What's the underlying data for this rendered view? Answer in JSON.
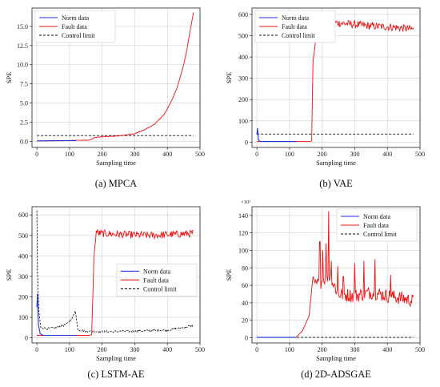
{
  "chart_data": [
    {
      "type": "line",
      "caption": "(a) MPCA",
      "xlabel": "Sampling time",
      "ylabel": "SPE",
      "xlim": [
        -15,
        500
      ],
      "ylim": [
        -0.8,
        17.4
      ],
      "xticks": [
        0,
        100,
        200,
        300,
        400,
        500
      ],
      "yticks": [
        0.0,
        2.5,
        5.0,
        7.5,
        10.0,
        12.5,
        15.0
      ],
      "ytick_labels": [
        "0.0",
        "2.5",
        "5.0",
        "7.5",
        "10.0",
        "12.5",
        "15.0"
      ],
      "y_multiplier": "",
      "grid": true,
      "legend_position": "top-left",
      "legend": [
        "Norm data",
        "Fault data",
        "Control limit"
      ],
      "colors": {
        "norm": "#2233dd",
        "fault": "#ee1111",
        "limit": "#111111"
      },
      "control_limit": 0.75,
      "noise": 0.05,
      "series": [
        {
          "name": "Norm data",
          "x": [
            0,
            120
          ],
          "y": [
            0.05,
            0.1
          ]
        },
        {
          "name": "Fault data",
          "x": [
            0,
            160,
            180,
            200,
            250,
            300,
            330,
            360,
            390,
            410,
            430,
            450,
            460,
            470,
            480
          ],
          "y": [
            0.05,
            0.15,
            0.5,
            0.6,
            0.7,
            1.0,
            1.5,
            2.2,
            3.5,
            5.0,
            7.0,
            10.0,
            12.0,
            14.5,
            16.8
          ]
        }
      ]
    },
    {
      "type": "line",
      "caption": "(b) VAE",
      "xlabel": "Sampling time",
      "ylabel": "SPE",
      "xlim": [
        -15,
        500
      ],
      "ylim": [
        -25,
        630
      ],
      "xticks": [
        0,
        100,
        200,
        300,
        400,
        500
      ],
      "yticks": [
        0,
        100,
        200,
        300,
        400,
        500,
        600
      ],
      "ytick_labels": [
        "0",
        "100",
        "200",
        "300",
        "400",
        "500",
        "600"
      ],
      "y_multiplier": "",
      "grid": true,
      "legend_position": "top-left",
      "legend": [
        "Norm data",
        "Fault data",
        "Control limit"
      ],
      "colors": {
        "norm": "#2233dd",
        "fault": "#ee1111",
        "limit": "#111111"
      },
      "control_limit": 38,
      "noise": 18,
      "series": [
        {
          "name": "Norm data",
          "x": [
            0,
            2,
            5,
            10,
            20,
            120
          ],
          "y": [
            35,
            65,
            10,
            3,
            3,
            3
          ]
        },
        {
          "name": "Fault data",
          "x": [
            0,
            160,
            168,
            172,
            178,
            185,
            250,
            350,
            420,
            480
          ],
          "y": [
            3,
            3,
            5,
            380,
            450,
            570,
            560,
            545,
            540,
            530
          ]
        }
      ]
    },
    {
      "type": "line",
      "caption": "(c) LSTM-AE",
      "xlabel": "Sampling time",
      "ylabel": "SPE",
      "xlim": [
        -15,
        500
      ],
      "ylim": [
        -25,
        640
      ],
      "xticks": [
        0,
        100,
        200,
        300,
        400,
        500
      ],
      "yticks": [
        0,
        100,
        200,
        300,
        400,
        500,
        600
      ],
      "ytick_labels": [
        "0",
        "100",
        "200",
        "300",
        "400",
        "500",
        "600"
      ],
      "y_multiplier": "",
      "grid": true,
      "legend_position": "center-right",
      "legend": [
        "Norm data",
        "Fault data",
        "Control limit"
      ],
      "colors": {
        "norm": "#2233dd",
        "fault": "#ee1111",
        "limit": "#111111"
      },
      "noise": 18,
      "control_limit_series": {
        "x": [
          0,
          2,
          6,
          12,
          30,
          60,
          90,
          110,
          118,
          125,
          150,
          200,
          300,
          400,
          450,
          480
        ],
        "y": [
          620,
          330,
          130,
          50,
          45,
          50,
          65,
          100,
          135,
          40,
          32,
          30,
          32,
          38,
          50,
          62
        ]
      },
      "series": [
        {
          "name": "Norm data",
          "x": [
            0,
            2,
            5,
            10,
            20,
            120
          ],
          "y": [
            150,
            215,
            60,
            20,
            12,
            12
          ]
        },
        {
          "name": "Fault data",
          "x": [
            0,
            160,
            168,
            175,
            182,
            190,
            250,
            350,
            420,
            480
          ],
          "y": [
            12,
            12,
            15,
            400,
            520,
            510,
            505,
            500,
            505,
            510
          ]
        }
      ]
    },
    {
      "type": "line",
      "caption": "(d) 2D-ADSGAE",
      "xlabel": "Sampling time",
      "ylabel": "SPE",
      "xlim": [
        -15,
        500
      ],
      "ylim": [
        -6,
        150
      ],
      "xticks": [
        0,
        100,
        200,
        300,
        400,
        500
      ],
      "yticks": [
        0,
        20,
        40,
        60,
        80,
        100,
        120,
        140
      ],
      "ytick_labels": [
        "0",
        "20",
        "40",
        "60",
        "80",
        "100",
        "120",
        "140"
      ],
      "y_multiplier": "×10²",
      "grid": true,
      "legend_position": "top-right",
      "legend": [
        "Norm data",
        "Fault data",
        "Control limit"
      ],
      "colors": {
        "norm": "#2233dd",
        "fault": "#ee1111",
        "limit": "#111111"
      },
      "control_limit": 0.4,
      "noise": 8,
      "series": [
        {
          "name": "Norm data",
          "x": [
            0,
            120
          ],
          "y": [
            0.3,
            0.3
          ]
        },
        {
          "name": "Fault data",
          "x": [
            0,
            120,
            140,
            160,
            172,
            180,
            200,
            220,
            250,
            300,
            350,
            400,
            450,
            480
          ],
          "y": [
            0.3,
            0.5,
            8,
            25,
            70,
            60,
            65,
            72,
            50,
            48,
            52,
            48,
            45,
            42
          ]
        }
      ],
      "spikes": [
        [
          175,
          92
        ],
        [
          193,
          110
        ],
        [
          202,
          100
        ],
        [
          212,
          108
        ],
        [
          220,
          145
        ],
        [
          228,
          88
        ],
        [
          248,
          82
        ],
        [
          265,
          70
        ],
        [
          300,
          85
        ],
        [
          328,
          88
        ],
        [
          362,
          90
        ],
        [
          410,
          72
        ]
      ]
    }
  ]
}
